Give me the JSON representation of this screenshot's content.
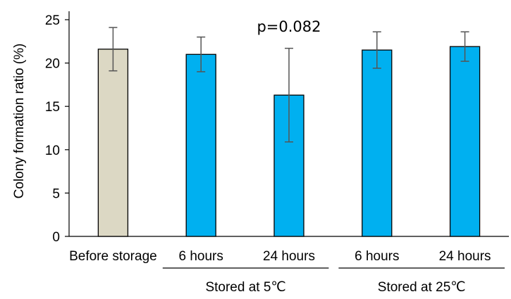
{
  "chart_data": {
    "type": "bar",
    "categories": [
      "Before storage",
      "6 hours",
      "24 hours",
      "6 hours",
      "24 hours"
    ],
    "values": [
      21.6,
      21.0,
      16.3,
      21.5,
      21.9
    ],
    "error": [
      2.5,
      2.0,
      5.4,
      2.1,
      1.7
    ],
    "bar_colors": [
      "#dcd8c4",
      "#00b0f0",
      "#00b0f0",
      "#00b0f0",
      "#00b0f0"
    ],
    "groups": [
      {
        "label": "Stored at 5℃",
        "categories": [
          1,
          2
        ]
      },
      {
        "label": "Stored at 25℃",
        "categories": [
          3,
          4
        ]
      }
    ],
    "annotation": {
      "text": "p=0.082",
      "category_index": 2
    },
    "title": "",
    "xlabel": "",
    "ylabel": "Colony formation ratio (%)",
    "ylim": [
      0,
      25
    ],
    "yticks": [
      0,
      5,
      10,
      15,
      20,
      25
    ],
    "grid": false,
    "legend": false
  }
}
